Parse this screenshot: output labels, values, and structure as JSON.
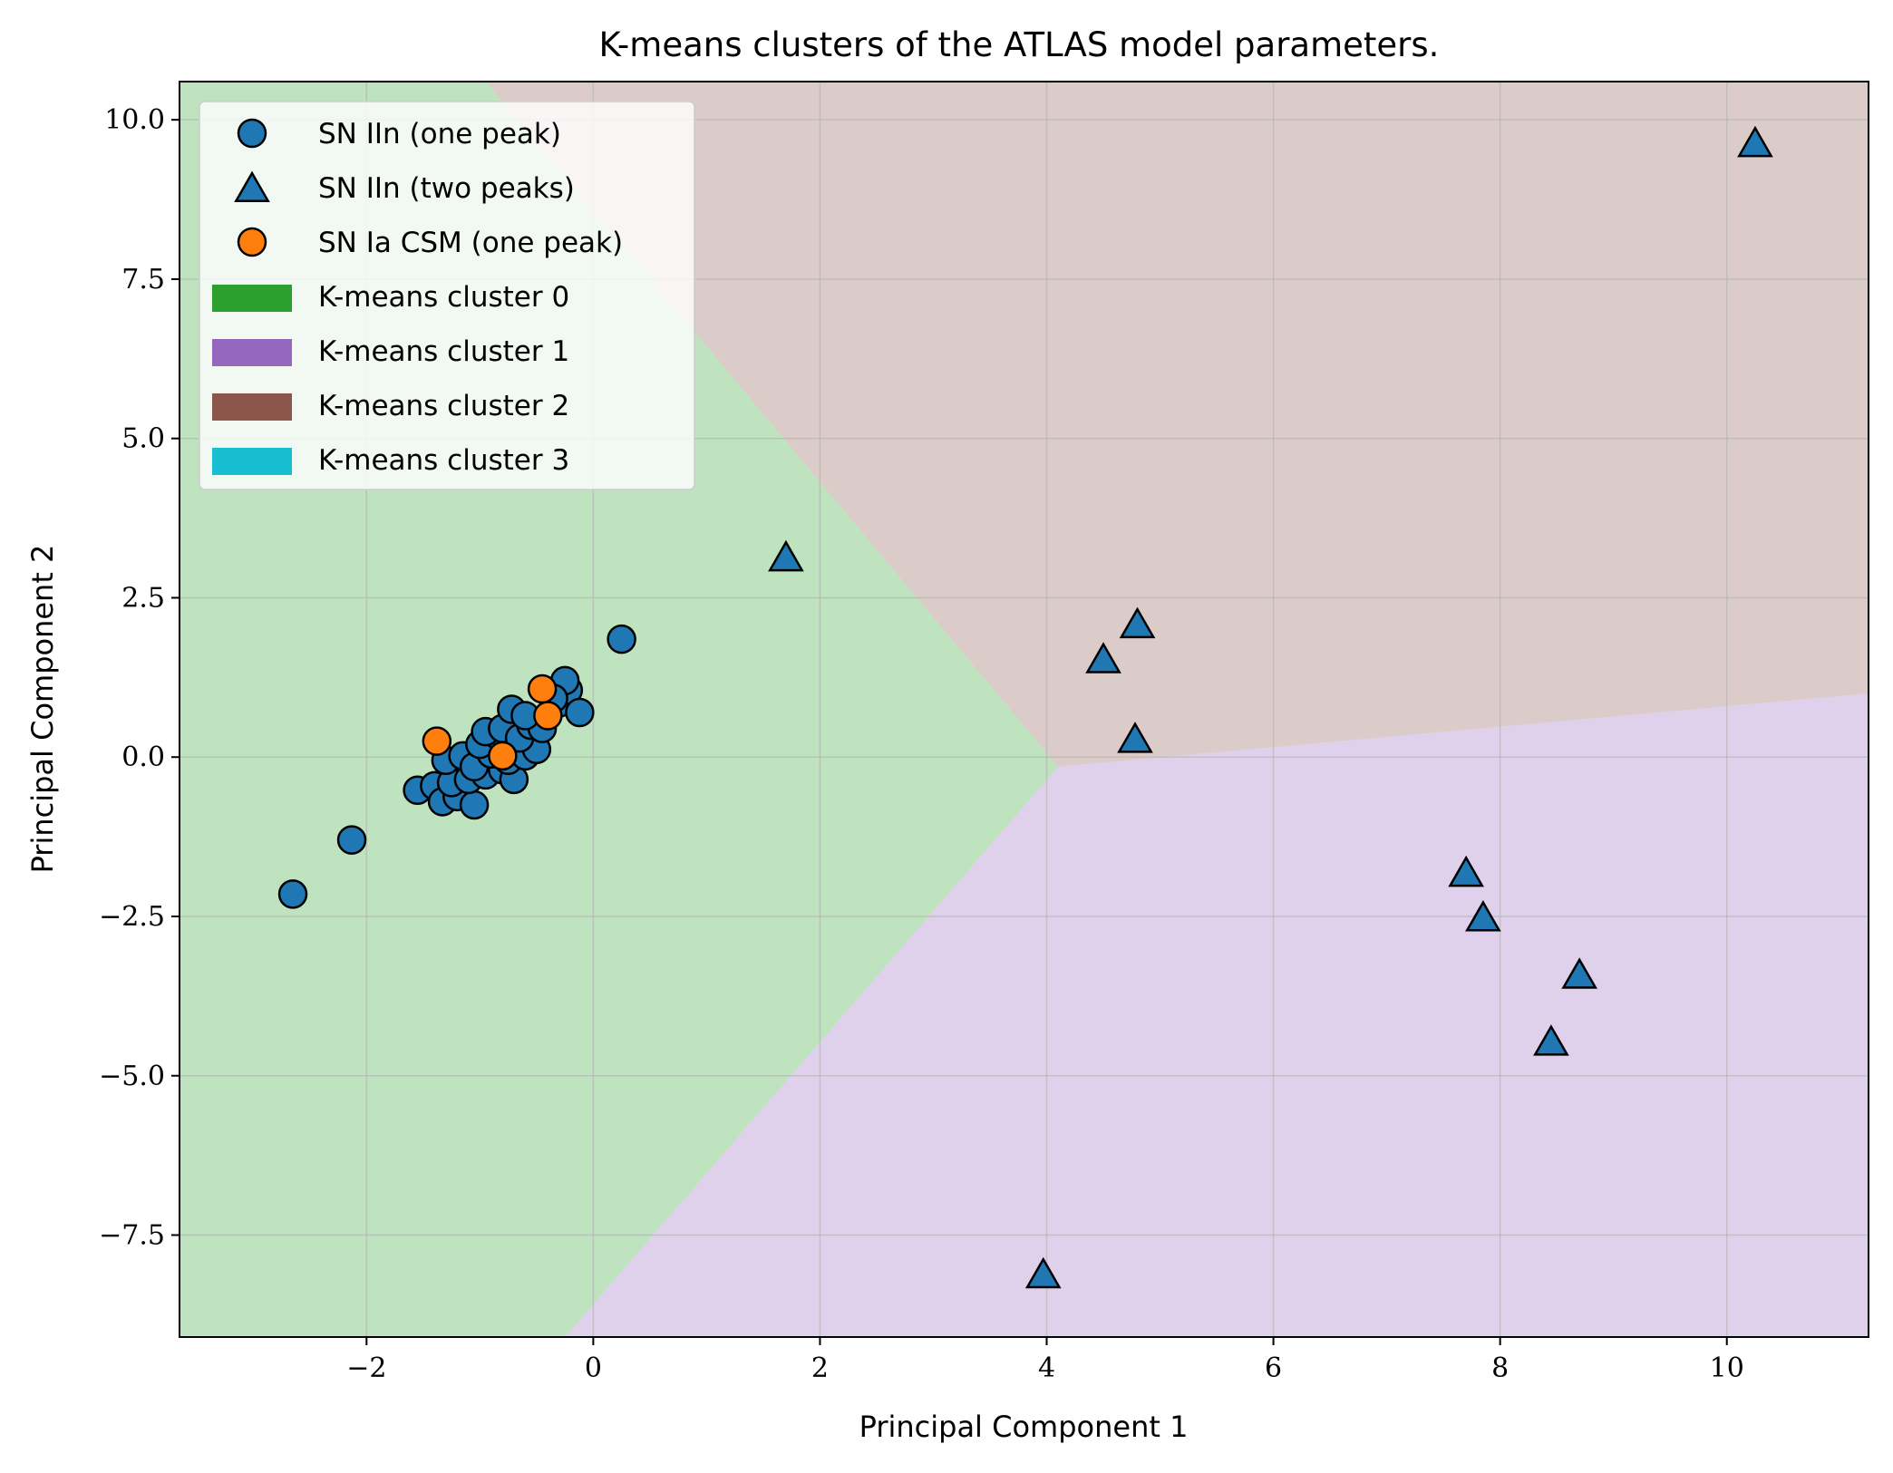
{
  "chart_data": {
    "type": "scatter",
    "title": "K-means clusters of the ATLAS model parameters.",
    "xlabel": "Principal Component 1",
    "ylabel": "Principal Component 2",
    "xlim": [
      -3.65,
      11.25
    ],
    "ylim": [
      -9.1,
      10.6
    ],
    "xticks": [
      -2,
      0,
      2,
      4,
      6,
      8,
      10
    ],
    "yticks": [
      -7.5,
      -5.0,
      -2.5,
      0.0,
      2.5,
      5.0,
      7.5,
      10.0
    ],
    "xtick_labels": [
      "−2",
      "0",
      "2",
      "4",
      "6",
      "8",
      "10"
    ],
    "ytick_labels": [
      "−7.5",
      "−5.0",
      "−2.5",
      "0.0",
      "2.5",
      "5.0",
      "7.5",
      "10.0"
    ],
    "grid": true,
    "legend_position": "upper-left",
    "series": [
      {
        "name": "SN IIn (one peak)",
        "marker": "circle",
        "color": "#1f77b4",
        "points": [
          [
            -2.65,
            -2.15
          ],
          [
            -2.13,
            -1.3
          ],
          [
            0.25,
            1.85
          ],
          [
            -1.55,
            -0.52
          ],
          [
            -1.4,
            -0.45
          ],
          [
            -1.33,
            -0.7
          ],
          [
            -1.2,
            -0.62
          ],
          [
            -1.05,
            -0.75
          ],
          [
            -1.25,
            -0.4
          ],
          [
            -1.1,
            -0.35
          ],
          [
            -0.95,
            -0.28
          ],
          [
            -0.8,
            -0.2
          ],
          [
            -0.7,
            -0.35
          ],
          [
            -1.3,
            -0.05
          ],
          [
            -1.15,
            0.02
          ],
          [
            -1.05,
            -0.15
          ],
          [
            -0.9,
            0.05
          ],
          [
            -0.75,
            -0.05
          ],
          [
            -0.6,
            0.02
          ],
          [
            -0.5,
            0.12
          ],
          [
            -1.0,
            0.2
          ],
          [
            -0.85,
            0.35
          ],
          [
            -0.95,
            0.4
          ],
          [
            -0.8,
            0.45
          ],
          [
            -0.65,
            0.3
          ],
          [
            -0.55,
            0.5
          ],
          [
            -0.45,
            0.45
          ],
          [
            -0.72,
            0.75
          ],
          [
            -0.6,
            0.65
          ],
          [
            -0.3,
            0.85
          ],
          [
            -0.22,
            1.05
          ],
          [
            -0.25,
            1.2
          ],
          [
            -0.12,
            0.7
          ],
          [
            -0.35,
            0.92
          ]
        ]
      },
      {
        "name": "SN IIn (two peaks)",
        "marker": "triangle",
        "color": "#1f77b4",
        "points": [
          [
            10.25,
            9.6
          ],
          [
            1.7,
            3.1
          ],
          [
            4.8,
            2.05
          ],
          [
            4.5,
            1.5
          ],
          [
            4.78,
            0.25
          ],
          [
            7.7,
            -1.85
          ],
          [
            7.85,
            -2.55
          ],
          [
            8.7,
            -3.45
          ],
          [
            8.45,
            -4.5
          ],
          [
            3.97,
            -8.15
          ]
        ]
      },
      {
        "name": "SN Ia CSM (one peak)",
        "marker": "circle",
        "color": "#ff7f0e",
        "points": [
          [
            -1.38,
            0.25
          ],
          [
            -0.45,
            1.07
          ],
          [
            -0.4,
            0.65
          ],
          [
            -0.8,
            0.02
          ]
        ]
      }
    ],
    "regions": [
      {
        "name": "K-means cluster 0",
        "color": "#2ca02c",
        "polygon": [
          [
            -3.65,
            10.6
          ],
          [
            -0.95,
            10.6
          ],
          [
            4.1,
            -0.15
          ],
          [
            -0.25,
            -9.1
          ],
          [
            -3.65,
            -9.1
          ]
        ]
      },
      {
        "name": "K-means cluster 1",
        "color": "#9467bd",
        "polygon": [
          [
            4.1,
            -0.15
          ],
          [
            11.25,
            1.0
          ],
          [
            11.25,
            -9.1
          ],
          [
            -0.25,
            -9.1
          ]
        ]
      },
      {
        "name": "K-means cluster 2",
        "color": "#8c564b",
        "polygon": [
          [
            -0.95,
            10.6
          ],
          [
            11.25,
            10.6
          ],
          [
            11.25,
            1.0
          ],
          [
            4.1,
            -0.15
          ]
        ]
      },
      {
        "name": "K-means cluster 3",
        "color": "#17becf",
        "polygon": []
      }
    ],
    "legend": [
      {
        "label": "SN IIn (one peak)",
        "kind": "circle",
        "color": "#1f77b4"
      },
      {
        "label": "SN IIn (two peaks)",
        "kind": "triangle",
        "color": "#1f77b4"
      },
      {
        "label": "SN Ia CSM (one peak)",
        "kind": "circle",
        "color": "#ff7f0e"
      },
      {
        "label": "K-means cluster 0",
        "kind": "patch",
        "color": "#2ca02c"
      },
      {
        "label": "K-means cluster 1",
        "kind": "patch",
        "color": "#9467bd"
      },
      {
        "label": "K-means cluster 2",
        "kind": "patch",
        "color": "#8c564b"
      },
      {
        "label": "K-means cluster 3",
        "kind": "patch",
        "color": "#17becf"
      }
    ]
  }
}
